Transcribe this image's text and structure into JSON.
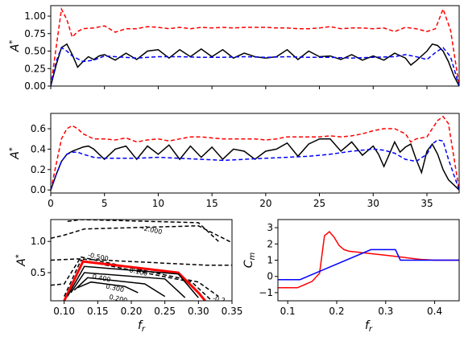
{
  "chart_data": [
    {
      "type": "line",
      "panel": "top",
      "ylabel": "A*",
      "xlim": [
        0,
        38
      ],
      "ylim": [
        0,
        1.15
      ],
      "x_ticks": [
        0,
        5,
        10,
        15,
        20,
        25,
        30,
        35
      ],
      "x_tick_labels_visible": false,
      "y_ticks": [
        0.0,
        0.25,
        0.5,
        0.75,
        1.0
      ],
      "y_tick_labels": [
        "0.00",
        "0.25",
        "0.50",
        "0.75",
        "1.00"
      ],
      "series": [
        {
          "color": "#ff0000",
          "style": "dashed",
          "x": [
            0,
            0.5,
            1,
            1.5,
            2,
            2.5,
            3,
            4,
            5,
            6,
            7,
            8,
            9,
            10,
            11,
            12,
            13,
            14,
            15,
            16,
            17,
            18,
            19,
            20,
            21,
            22,
            23,
            24,
            25,
            26,
            27,
            28,
            29,
            30,
            31,
            32,
            33,
            34,
            35,
            35.8,
            36.5,
            37.2,
            38
          ],
          "y": [
            0,
            0.55,
            1.1,
            0.95,
            0.7,
            0.78,
            0.82,
            0.83,
            0.86,
            0.77,
            0.82,
            0.82,
            0.85,
            0.84,
            0.82,
            0.84,
            0.82,
            0.84,
            0.83,
            0.84,
            0.83,
            0.84,
            0.84,
            0.84,
            0.83,
            0.83,
            0.82,
            0.82,
            0.83,
            0.85,
            0.82,
            0.83,
            0.83,
            0.82,
            0.83,
            0.78,
            0.84,
            0.82,
            0.78,
            0.82,
            1.1,
            0.8,
            0
          ]
        },
        {
          "color": "#000000",
          "style": "solid",
          "x": [
            0,
            0.5,
            1,
            1.5,
            2,
            2.5,
            3,
            3.5,
            4,
            4.5,
            5,
            6,
            7,
            8,
            9,
            10,
            11,
            12,
            13,
            14,
            15,
            16,
            17,
            18,
            19,
            20,
            21,
            22,
            23,
            24,
            25,
            26,
            27,
            28,
            29,
            30,
            31,
            32,
            33,
            33.5,
            34,
            35,
            35.5,
            36,
            36.5,
            37,
            37.5,
            38
          ],
          "y": [
            0,
            0.3,
            0.55,
            0.6,
            0.45,
            0.27,
            0.35,
            0.42,
            0.38,
            0.43,
            0.45,
            0.37,
            0.47,
            0.38,
            0.5,
            0.52,
            0.4,
            0.52,
            0.42,
            0.53,
            0.42,
            0.52,
            0.4,
            0.47,
            0.42,
            0.4,
            0.42,
            0.52,
            0.38,
            0.5,
            0.42,
            0.43,
            0.38,
            0.45,
            0.37,
            0.43,
            0.37,
            0.47,
            0.4,
            0.3,
            0.36,
            0.5,
            0.6,
            0.58,
            0.5,
            0.35,
            0.15,
            0
          ]
        },
        {
          "color": "#0000ff",
          "style": "dashed",
          "x": [
            0,
            0.5,
            1,
            1.5,
            2,
            3,
            4,
            5,
            6,
            8,
            10,
            12,
            14,
            16,
            18,
            20,
            22,
            24,
            26,
            28,
            30,
            32,
            33,
            34,
            35,
            35.8,
            36.5,
            37.2,
            38
          ],
          "y": [
            0,
            0.35,
            0.55,
            0.5,
            0.43,
            0.35,
            0.37,
            0.43,
            0.42,
            0.4,
            0.42,
            0.42,
            0.41,
            0.41,
            0.42,
            0.41,
            0.42,
            0.41,
            0.41,
            0.4,
            0.41,
            0.42,
            0.45,
            0.42,
            0.38,
            0.48,
            0.55,
            0.42,
            0
          ]
        }
      ]
    },
    {
      "type": "line",
      "panel": "middle",
      "ylabel": "A*",
      "xlim": [
        0,
        38
      ],
      "ylim": [
        -0.03,
        0.75
      ],
      "x_ticks": [
        0,
        5,
        10,
        15,
        20,
        25,
        30,
        35
      ],
      "x_tick_labels": [
        "0",
        "5",
        "10",
        "15",
        "20",
        "25",
        "30",
        "35"
      ],
      "y_ticks": [
        0.0,
        0.2,
        0.4,
        0.6
      ],
      "y_tick_labels": [
        "0.0",
        "0.2",
        "0.4",
        "0.6"
      ],
      "series": [
        {
          "color": "#ff0000",
          "style": "dashed",
          "x": [
            0,
            0.5,
            1,
            1.5,
            2,
            2.5,
            3,
            4,
            5,
            6,
            7,
            8,
            9,
            10,
            11,
            12,
            13,
            14,
            15,
            16,
            17,
            18,
            19,
            20,
            21,
            22,
            23,
            24,
            25,
            26,
            27,
            28,
            29,
            30,
            31,
            32,
            33,
            33.5,
            34,
            35,
            35.5,
            36,
            36.5,
            37,
            38
          ],
          "y": [
            0,
            0.25,
            0.5,
            0.6,
            0.63,
            0.6,
            0.55,
            0.5,
            0.5,
            0.49,
            0.51,
            0.47,
            0.49,
            0.5,
            0.48,
            0.5,
            0.52,
            0.52,
            0.51,
            0.5,
            0.5,
            0.5,
            0.5,
            0.49,
            0.5,
            0.52,
            0.52,
            0.52,
            0.52,
            0.53,
            0.52,
            0.53,
            0.55,
            0.58,
            0.6,
            0.6,
            0.55,
            0.47,
            0.5,
            0.52,
            0.6,
            0.68,
            0.72,
            0.65,
            0
          ]
        },
        {
          "color": "#000000",
          "style": "solid",
          "x": [
            0,
            0.5,
            1,
            1.5,
            2,
            2.5,
            3,
            3.5,
            4,
            4.5,
            5,
            6,
            7,
            8,
            9,
            10,
            11,
            12,
            13,
            14,
            15,
            16,
            17,
            18,
            19,
            20,
            21,
            22,
            23,
            24,
            25,
            26,
            27,
            28,
            29,
            30,
            30.5,
            31,
            31.5,
            32,
            32.5,
            33,
            33.5,
            34,
            34.5,
            35,
            35.5,
            36,
            36.5,
            37,
            38
          ],
          "y": [
            0,
            0.15,
            0.28,
            0.35,
            0.38,
            0.4,
            0.42,
            0.43,
            0.4,
            0.35,
            0.3,
            0.4,
            0.43,
            0.3,
            0.43,
            0.35,
            0.44,
            0.3,
            0.43,
            0.32,
            0.42,
            0.3,
            0.4,
            0.38,
            0.3,
            0.38,
            0.4,
            0.46,
            0.33,
            0.45,
            0.5,
            0.5,
            0.38,
            0.47,
            0.34,
            0.43,
            0.35,
            0.23,
            0.35,
            0.47,
            0.37,
            0.42,
            0.45,
            0.3,
            0.17,
            0.38,
            0.45,
            0.35,
            0.2,
            0.1,
            0
          ]
        },
        {
          "color": "#0000ff",
          "style": "dashed",
          "x": [
            0,
            0.5,
            1,
            1.5,
            2,
            2.5,
            3,
            4,
            5,
            6,
            8,
            10,
            12,
            14,
            16,
            18,
            20,
            22,
            24,
            26,
            28,
            30,
            31,
            32,
            33,
            34,
            35,
            35.5,
            36,
            36.5,
            37,
            38
          ],
          "y": [
            0,
            0.15,
            0.28,
            0.35,
            0.37,
            0.37,
            0.35,
            0.32,
            0.31,
            0.31,
            0.31,
            0.32,
            0.31,
            0.3,
            0.29,
            0.3,
            0.31,
            0.32,
            0.33,
            0.35,
            0.38,
            0.4,
            0.39,
            0.36,
            0.3,
            0.28,
            0.35,
            0.45,
            0.49,
            0.48,
            0.3,
            0
          ]
        }
      ]
    },
    {
      "type": "contour",
      "panel": "bottom-left",
      "xlabel": "f_r",
      "ylabel": "A*",
      "xlim": [
        0.08,
        0.35
      ],
      "ylim": [
        0.05,
        1.35
      ],
      "x_ticks": [
        0.1,
        0.15,
        0.2,
        0.25,
        0.3,
        0.35
      ],
      "x_tick_labels": [
        "0.10",
        "0.15",
        "0.20",
        "0.25",
        "0.30",
        "0.35"
      ],
      "y_ticks": [
        0.5,
        1.0
      ],
      "y_tick_labels": [
        "0.5",
        "1.0"
      ],
      "contour_labels": [
        "-2.000",
        "-0.500",
        "0.100",
        "0.400",
        "0.300",
        "0.200",
        "-0.2"
      ],
      "levels": [
        {
          "level": -2.0,
          "style": "dashed",
          "x": [
            0.105,
            0.125,
            0.3,
            0.33
          ],
          "y": [
            1.32,
            1.35,
            1.3,
            1.0
          ]
        },
        {
          "level": -1.5,
          "style": "dashed",
          "x": [
            0.08,
            0.1,
            0.13,
            0.3,
            0.35
          ],
          "y": [
            1.05,
            1.1,
            1.2,
            1.25,
            0.98
          ]
        },
        {
          "level": -1.0,
          "style": "dashed",
          "x": [
            0.08,
            0.12,
            0.31,
            0.35
          ],
          "y": [
            0.7,
            0.72,
            0.62,
            0.62
          ]
        },
        {
          "level": -0.5,
          "style": "dashed",
          "x": [
            0.08,
            0.1,
            0.125,
            0.3,
            0.33
          ],
          "y": [
            0.3,
            0.32,
            0.75,
            0.35,
            0.12
          ]
        },
        {
          "level": -0.2,
          "style": "dashed",
          "x": [
            0.1,
            0.125,
            0.29,
            0.32
          ],
          "y": [
            0.12,
            0.7,
            0.35,
            0.05
          ]
        },
        {
          "level": 0.0,
          "style": "red",
          "x": [
            0.1,
            0.128,
            0.27,
            0.3,
            0.31
          ],
          "y": [
            0.05,
            0.68,
            0.5,
            0.18,
            0.05
          ]
        },
        {
          "level": 0.1,
          "style": "solid",
          "x": [
            0.105,
            0.13,
            0.27,
            0.3
          ],
          "y": [
            0.12,
            0.6,
            0.48,
            0.1
          ]
        },
        {
          "level": 0.2,
          "style": "solid",
          "x": [
            0.11,
            0.13,
            0.25,
            0.28
          ],
          "y": [
            0.18,
            0.5,
            0.4,
            0.1
          ]
        },
        {
          "level": 0.3,
          "style": "solid",
          "x": [
            0.115,
            0.135,
            0.22,
            0.25
          ],
          "y": [
            0.22,
            0.42,
            0.32,
            0.12
          ]
        },
        {
          "level": 0.4,
          "style": "solid",
          "x": [
            0.12,
            0.14,
            0.19,
            0.21
          ],
          "y": [
            0.26,
            0.35,
            0.28,
            0.18
          ]
        }
      ]
    },
    {
      "type": "line",
      "panel": "bottom-right",
      "xlabel": "f_r",
      "ylabel": "C_m",
      "xlim": [
        0.08,
        0.45
      ],
      "ylim": [
        -1.5,
        3.5
      ],
      "x_ticks": [
        0.1,
        0.2,
        0.3,
        0.4
      ],
      "x_tick_labels": [
        "0.1",
        "0.2",
        "0.3",
        "0.4"
      ],
      "y_ticks": [
        -1,
        0,
        1,
        2,
        3
      ],
      "y_tick_labels": [
        "−1",
        "0",
        "1",
        "2",
        "3"
      ],
      "series": [
        {
          "color": "#ff0000",
          "style": "solid",
          "x": [
            0.08,
            0.12,
            0.15,
            0.165,
            0.175,
            0.185,
            0.195,
            0.205,
            0.215,
            0.225,
            0.24,
            0.27,
            0.3,
            0.33,
            0.37,
            0.4,
            0.45
          ],
          "y": [
            -0.7,
            -0.7,
            -0.3,
            0.2,
            2.5,
            2.75,
            2.4,
            1.9,
            1.65,
            1.55,
            1.5,
            1.4,
            1.3,
            1.2,
            1.05,
            1.0,
            1.0
          ]
        },
        {
          "color": "#0000ff",
          "style": "solid",
          "x": [
            0.08,
            0.125,
            0.27,
            0.32,
            0.33,
            0.37,
            0.45
          ],
          "y": [
            -0.2,
            -0.2,
            1.65,
            1.65,
            1.0,
            1.0,
            1.0
          ]
        }
      ]
    }
  ]
}
